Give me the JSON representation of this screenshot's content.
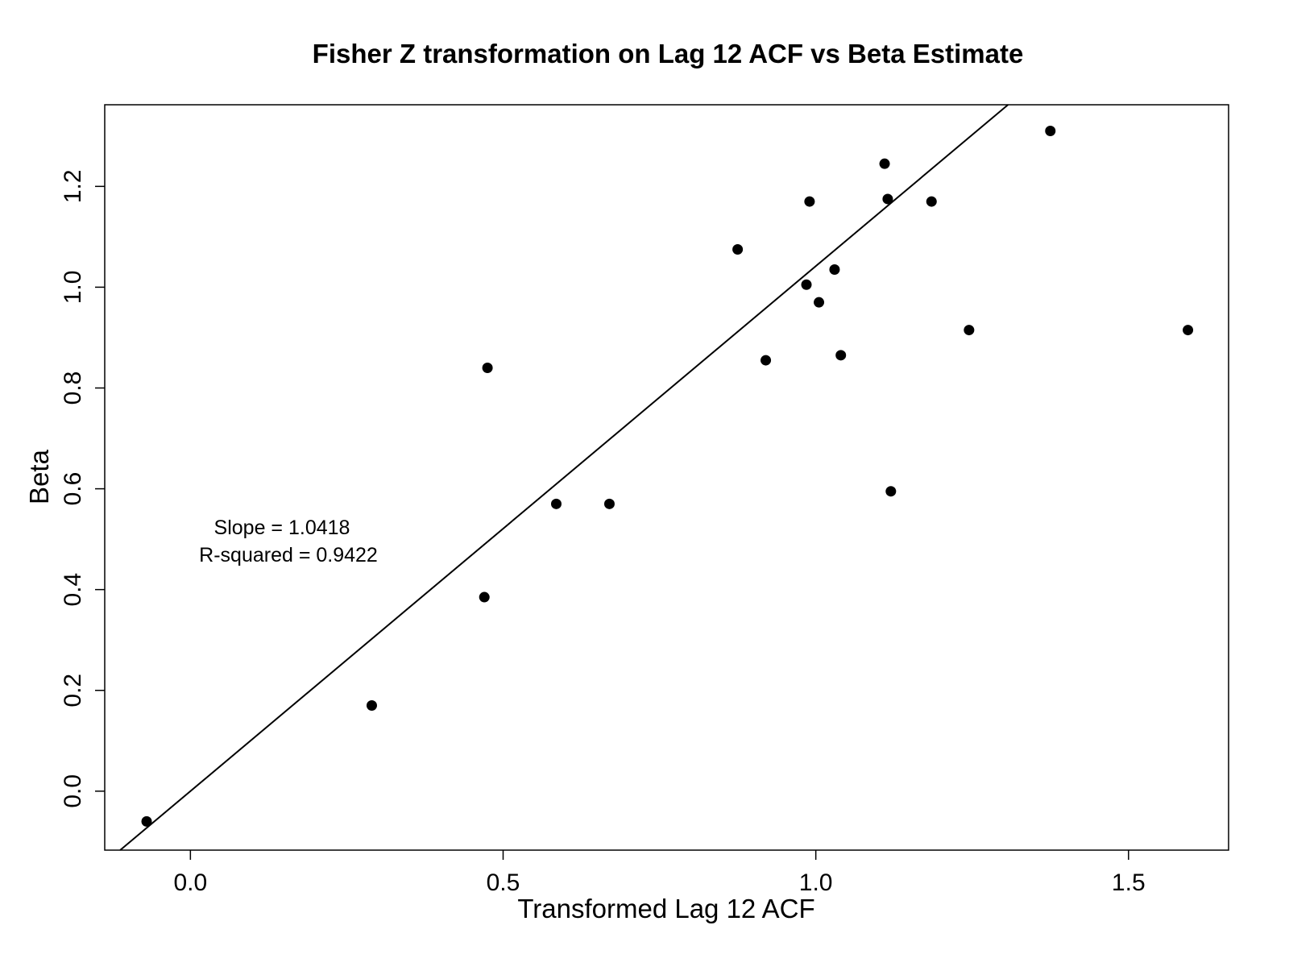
{
  "chart_data": {
    "type": "scatter",
    "title": "Fisher Z transformation on Lag 12 ACF vs Beta Estimate",
    "xlabel": "Transformed Lag 12 ACF",
    "ylabel": "Beta",
    "xlim": [
      -0.137,
      1.66
    ],
    "ylim": [
      -0.117,
      1.362
    ],
    "x_ticks": [
      0.0,
      0.5,
      1.0,
      1.5
    ],
    "x_tick_labels": [
      "0.0",
      "0.5",
      "1.0",
      "1.5"
    ],
    "y_ticks": [
      0.0,
      0.2,
      0.4,
      0.6,
      0.8,
      1.0,
      1.2
    ],
    "y_tick_labels": [
      "0.0",
      "0.2",
      "0.4",
      "0.6",
      "0.8",
      "1.0",
      "1.2"
    ],
    "grid": false,
    "legend": "none",
    "point_color": "#000000",
    "line_color": "#000000",
    "points": [
      {
        "x": -0.07,
        "y": -0.06
      },
      {
        "x": 0.29,
        "y": 0.17
      },
      {
        "x": 0.47,
        "y": 0.385
      },
      {
        "x": 0.475,
        "y": 0.84
      },
      {
        "x": 0.585,
        "y": 0.57
      },
      {
        "x": 0.67,
        "y": 0.57
      },
      {
        "x": 0.875,
        "y": 1.075
      },
      {
        "x": 0.92,
        "y": 0.855
      },
      {
        "x": 0.985,
        "y": 1.005
      },
      {
        "x": 0.99,
        "y": 1.17
      },
      {
        "x": 1.005,
        "y": 0.97
      },
      {
        "x": 1.03,
        "y": 1.035
      },
      {
        "x": 1.04,
        "y": 0.865
      },
      {
        "x": 1.11,
        "y": 1.245
      },
      {
        "x": 1.115,
        "y": 1.175
      },
      {
        "x": 1.12,
        "y": 0.595
      },
      {
        "x": 1.185,
        "y": 1.17
      },
      {
        "x": 1.245,
        "y": 0.915
      },
      {
        "x": 1.375,
        "y": 1.31
      },
      {
        "x": 1.595,
        "y": 0.915
      }
    ],
    "fit_line": {
      "slope": 1.0418,
      "intercept": 0.0
    },
    "annotations": {
      "slope_text": "Slope =  1.0418",
      "r2_text": "R-squared =  0.9422"
    }
  }
}
